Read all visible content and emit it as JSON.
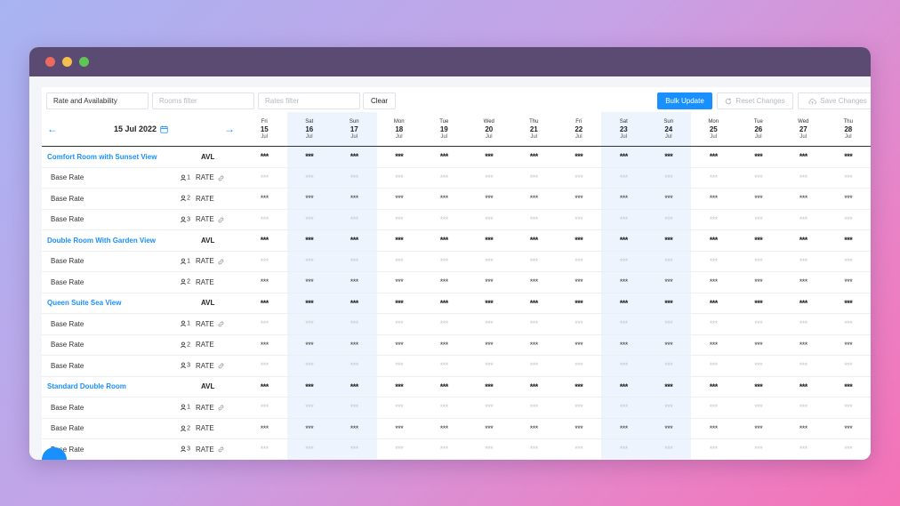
{
  "window": {
    "controls": [
      "close",
      "minimize",
      "maximize"
    ]
  },
  "toolbar": {
    "view_select": "Rate and Availability",
    "rooms_filter_placeholder": "Rooms filter",
    "rates_filter_placeholder": "Rates filter",
    "clear_label": "Clear",
    "bulk_update_label": "Bulk Update",
    "reset_changes_label": "Reset Changes",
    "save_changes_label": "Save Changes"
  },
  "date_nav": {
    "current_date": "15 Jul 2022",
    "prev_icon": "arrow-left-icon",
    "next_icon": "arrow-right-icon",
    "calendar_icon": "calendar-icon"
  },
  "days": [
    {
      "name": "Fri",
      "num": "15",
      "month": "Jul",
      "weekend": false
    },
    {
      "name": "Sat",
      "num": "16",
      "month": "Jul",
      "weekend": true
    },
    {
      "name": "Sun",
      "num": "17",
      "month": "Jul",
      "weekend": true
    },
    {
      "name": "Mon",
      "num": "18",
      "month": "Jul",
      "weekend": false
    },
    {
      "name": "Tue",
      "num": "19",
      "month": "Jul",
      "weekend": false
    },
    {
      "name": "Wed",
      "num": "20",
      "month": "Jul",
      "weekend": false
    },
    {
      "name": "Thu",
      "num": "21",
      "month": "Jul",
      "weekend": false
    },
    {
      "name": "Fri",
      "num": "22",
      "month": "Jul",
      "weekend": false
    },
    {
      "name": "Sat",
      "num": "23",
      "month": "Jul",
      "weekend": true
    },
    {
      "name": "Sun",
      "num": "24",
      "month": "Jul",
      "weekend": true
    },
    {
      "name": "Mon",
      "num": "25",
      "month": "Jul",
      "weekend": false
    },
    {
      "name": "Tue",
      "num": "26",
      "month": "Jul",
      "weekend": false
    },
    {
      "name": "Wed",
      "num": "27",
      "month": "Jul",
      "weekend": false
    },
    {
      "name": "Thu",
      "num": "28",
      "month": "Jul",
      "weekend": false
    }
  ],
  "cell_value": "***",
  "avl_label": "AVL",
  "rate_label": "RATE",
  "rooms": [
    {
      "name": "Comfort Room with Sunset View",
      "rates": [
        {
          "name": "Base Rate",
          "occupancy": "1",
          "linked": true
        },
        {
          "name": "Base Rate",
          "occupancy": "2",
          "linked": false
        },
        {
          "name": "Base Rate",
          "occupancy": "3",
          "linked": true
        }
      ]
    },
    {
      "name": "Double Room With Garden View",
      "rates": [
        {
          "name": "Base Rate",
          "occupancy": "1",
          "linked": true
        },
        {
          "name": "Base Rate",
          "occupancy": "2",
          "linked": false
        }
      ]
    },
    {
      "name": "Queen Suite Sea View",
      "rates": [
        {
          "name": "Base Rate",
          "occupancy": "1",
          "linked": true
        },
        {
          "name": "Base Rate",
          "occupancy": "2",
          "linked": false
        },
        {
          "name": "Base Rate",
          "occupancy": "3",
          "linked": true
        }
      ]
    },
    {
      "name": "Standard Double Room",
      "rates": [
        {
          "name": "Base Rate",
          "occupancy": "1",
          "linked": true
        },
        {
          "name": "Base Rate",
          "occupancy": "2",
          "linked": false
        },
        {
          "name": "Base Rate",
          "occupancy": "3",
          "linked": true
        }
      ]
    }
  ],
  "colors": {
    "accent": "#1890ff",
    "weekend_bg": "#edf4fd",
    "titlebar": "#5b4b73"
  }
}
